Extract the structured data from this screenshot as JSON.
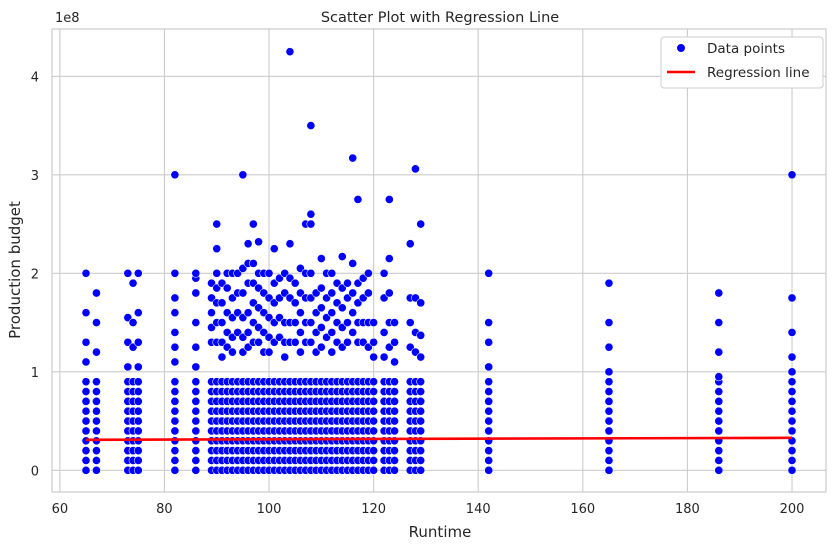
{
  "chart_data": {
    "type": "scatter",
    "title": "Scatter Plot with Regression Line",
    "xlabel": "Runtime",
    "ylabel": "Production budget",
    "y_offset_text": "1e8",
    "xlim": [
      58.5,
      206.5
    ],
    "ylim": [
      -0.22,
      4.48
    ],
    "y_unit_multiplier": 100000000,
    "x_ticks": [
      60,
      80,
      100,
      120,
      140,
      160,
      180,
      200
    ],
    "y_ticks": [
      0,
      1,
      2,
      3,
      4
    ],
    "grid": true,
    "legend_position": "top-right",
    "legend": [
      {
        "name": "Data points",
        "marker": "dot"
      },
      {
        "name": "Regression line",
        "marker": "line"
      }
    ],
    "colors": {
      "points": "#0000ff",
      "line": "#ff0000",
      "grid": "#cccccc",
      "frame": "#cccccc"
    },
    "columns": [
      {
        "x": 65,
        "max": 2.0,
        "upper": [
          1.6,
          1.3,
          1.1
        ]
      },
      {
        "x": 67,
        "max": 1.8,
        "upper": [
          1.5,
          1.2
        ]
      },
      {
        "x": 73,
        "max": 2.0,
        "upper": [
          1.55,
          1.3,
          1.05
        ]
      },
      {
        "x": 74,
        "max": 1.9,
        "upper": [
          1.5,
          1.25
        ]
      },
      {
        "x": 75,
        "max": 2.0,
        "upper": [
          1.6,
          1.3,
          1.05
        ]
      },
      {
        "x": 82,
        "max": 3.0,
        "upper": [
          2.0,
          1.75,
          1.6,
          1.4,
          1.25,
          1.1
        ]
      },
      {
        "x": 86,
        "max": 2.0,
        "upper": [
          1.95,
          1.8,
          1.5,
          1.25,
          1.05
        ]
      },
      {
        "x": 89,
        "max": 1.9,
        "upper": [
          1.75,
          1.6,
          1.45,
          1.3
        ]
      },
      {
        "x": 90,
        "max": 2.5,
        "upper": [
          2.25,
          2.0,
          1.85,
          1.7,
          1.5,
          1.3
        ]
      },
      {
        "x": 91,
        "max": 1.9,
        "upper": [
          1.7,
          1.5,
          1.3,
          1.15
        ]
      },
      {
        "x": 92,
        "max": 2.0,
        "upper": [
          1.85,
          1.6,
          1.4,
          1.25
        ]
      },
      {
        "x": 93,
        "max": 2.0,
        "upper": [
          1.75,
          1.55,
          1.35,
          1.2
        ]
      },
      {
        "x": 94,
        "max": 2.0,
        "upper": [
          1.8,
          1.6,
          1.4
        ]
      },
      {
        "x": 95,
        "max": 3.0,
        "upper": [
          2.05,
          1.8,
          1.55,
          1.35,
          1.2
        ]
      },
      {
        "x": 96,
        "max": 2.3,
        "upper": [
          2.1,
          1.9,
          1.6,
          1.4,
          1.25
        ]
      },
      {
        "x": 97,
        "max": 2.5,
        "upper": [
          2.1,
          1.9,
          1.7,
          1.5,
          1.3
        ]
      },
      {
        "x": 98,
        "max": 2.32,
        "upper": [
          2.0,
          1.85,
          1.65,
          1.45,
          1.3
        ]
      },
      {
        "x": 99,
        "max": 2.0,
        "upper": [
          1.8,
          1.6,
          1.4,
          1.2
        ]
      },
      {
        "x": 100,
        "max": 2.0,
        "upper": [
          1.75,
          1.55,
          1.35,
          1.2
        ]
      },
      {
        "x": 101,
        "max": 2.25,
        "upper": [
          1.9,
          1.7,
          1.5,
          1.3
        ]
      },
      {
        "x": 102,
        "max": 1.95,
        "upper": [
          1.75,
          1.55,
          1.35
        ]
      },
      {
        "x": 103,
        "max": 2.0,
        "upper": [
          1.8,
          1.5,
          1.3,
          1.15
        ]
      },
      {
        "x": 104,
        "max": 4.25,
        "upper": [
          2.3,
          1.95,
          1.75,
          1.5,
          1.3
        ]
      },
      {
        "x": 105,
        "max": 1.9,
        "upper": [
          1.7,
          1.5,
          1.3
        ]
      },
      {
        "x": 106,
        "max": 2.05,
        "upper": [
          1.8,
          1.6,
          1.4,
          1.2
        ]
      },
      {
        "x": 107,
        "max": 2.5,
        "upper": [
          2.0,
          1.75,
          1.5,
          1.3
        ]
      },
      {
        "x": 108,
        "max": 3.5,
        "upper": [
          2.6,
          2.5,
          2.0,
          1.75,
          1.5,
          1.3
        ]
      },
      {
        "x": 109,
        "max": 1.8,
        "upper": [
          1.6,
          1.4,
          1.2
        ]
      },
      {
        "x": 110,
        "max": 2.15,
        "upper": [
          1.85,
          1.65,
          1.45,
          1.25
        ]
      },
      {
        "x": 111,
        "max": 2.0,
        "upper": [
          1.75,
          1.55,
          1.35
        ]
      },
      {
        "x": 112,
        "max": 2.0,
        "upper": [
          1.8,
          1.6,
          1.4,
          1.2
        ]
      },
      {
        "x": 113,
        "max": 1.9,
        "upper": [
          1.7,
          1.5,
          1.3
        ]
      },
      {
        "x": 114,
        "max": 2.17,
        "upper": [
          1.85,
          1.65,
          1.45,
          1.25
        ]
      },
      {
        "x": 115,
        "max": 1.9,
        "upper": [
          1.75,
          1.5,
          1.3
        ]
      },
      {
        "x": 116,
        "max": 3.17,
        "upper": [
          2.1,
          1.8,
          1.6,
          1.4
        ]
      },
      {
        "x": 117,
        "max": 2.75,
        "upper": [
          1.9,
          1.7,
          1.5,
          1.3
        ]
      },
      {
        "x": 118,
        "max": 1.95,
        "upper": [
          1.75,
          1.5,
          1.3
        ]
      },
      {
        "x": 119,
        "max": 2.0,
        "upper": [
          1.8,
          1.5,
          1.25
        ]
      },
      {
        "x": 120,
        "max": 1.5,
        "upper": [
          1.3,
          1.15
        ]
      },
      {
        "x": 122,
        "max": 2.0,
        "upper": [
          1.75,
          1.4,
          1.15
        ]
      },
      {
        "x": 123,
        "max": 2.75,
        "upper": [
          2.15,
          1.8,
          1.5,
          1.25
        ]
      },
      {
        "x": 124,
        "max": 1.5,
        "upper": [
          1.3,
          1.1
        ]
      },
      {
        "x": 127,
        "max": 2.3,
        "upper": [
          1.75,
          1.5,
          1.25
        ]
      },
      {
        "x": 128,
        "max": 3.06,
        "upper": [
          1.75,
          1.4,
          1.2
        ]
      },
      {
        "x": 129,
        "max": 2.5,
        "upper": [
          1.7,
          1.37,
          1.15
        ]
      },
      {
        "x": 142,
        "max": 2.0,
        "upper": [
          1.5,
          1.3,
          1.05
        ]
      },
      {
        "x": 165,
        "max": 1.9,
        "upper": [
          1.5,
          1.25,
          1.0
        ]
      },
      {
        "x": 186,
        "max": 1.8,
        "upper": [
          1.5,
          1.2,
          0.95
        ]
      },
      {
        "x": 200,
        "max": 3.0,
        "upper": [
          1.75,
          1.4,
          1.15,
          1.0
        ]
      }
    ],
    "regression": {
      "x": [
        65,
        200
      ],
      "y": [
        0.31,
        0.33
      ]
    }
  }
}
